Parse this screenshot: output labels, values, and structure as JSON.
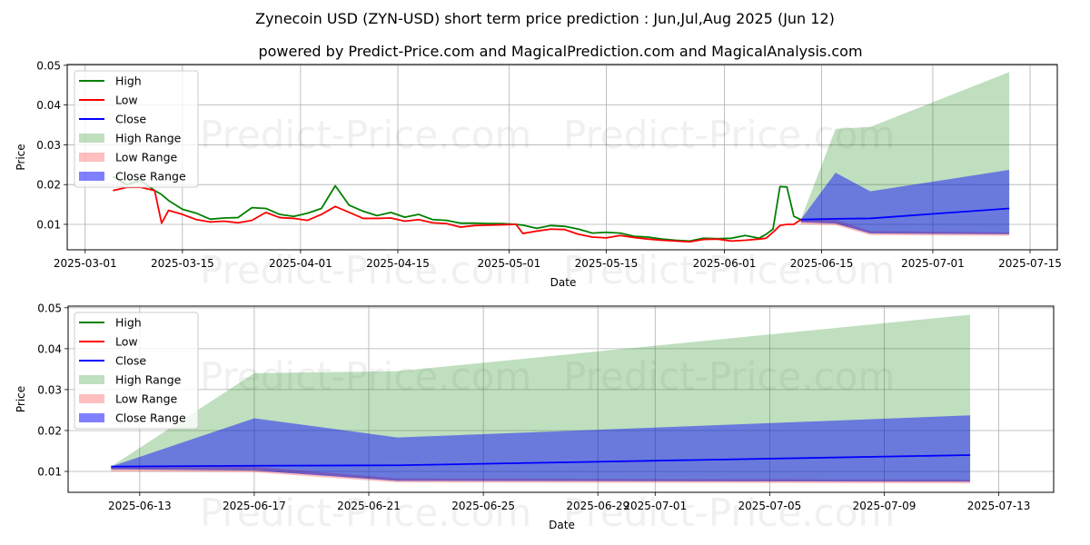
{
  "title": "Zynecoin USD (ZYN-USD) short term price prediction : Jun,Jul,Aug 2025 (Jun 12)",
  "subtitle": "powered by Predict-Price.com and MagicalPrediction.com and MagicalAnalysis.com",
  "watermark": "Predict-Price.com",
  "colors": {
    "high": "#008000",
    "low": "#ff0000",
    "close": "#0000ff",
    "high_range": "#008000",
    "low_range": "#ff0000",
    "close_range": "#0000ff"
  },
  "legend": [
    "High",
    "Low",
    "Close",
    "High Range",
    "Low Range",
    "Close Range"
  ],
  "chart_data": [
    {
      "type": "line",
      "xlabel": "Date",
      "ylabel": "Price",
      "xlim": [
        "2025-02-26T10:00",
        "2025-07-18T22:00"
      ],
      "ylim": [
        0.0036,
        0.0502
      ],
      "grid": true,
      "legend_position": "top-left",
      "xticks": [
        "2025-03-01",
        "2025-03-15",
        "2025-04-01",
        "2025-04-15",
        "2025-05-01",
        "2025-05-15",
        "2025-06-01",
        "2025-06-15",
        "2025-07-01",
        "2025-07-15"
      ],
      "yticks": [
        0.01,
        0.02,
        0.03,
        0.04,
        0.05
      ],
      "ytick_labels": [
        "0.01",
        "0.02",
        "0.03",
        "0.04",
        "0.05"
      ],
      "history": {
        "dates": [
          "2025-03-05",
          "2025-03-07",
          "2025-03-09",
          "2025-03-11",
          "2025-03-12",
          "2025-03-13",
          "2025-03-15",
          "2025-03-17",
          "2025-03-19",
          "2025-03-21",
          "2025-03-23",
          "2025-03-25",
          "2025-03-27",
          "2025-03-29",
          "2025-03-31",
          "2025-04-02",
          "2025-04-04",
          "2025-04-06",
          "2025-04-08",
          "2025-04-10",
          "2025-04-12",
          "2025-04-14",
          "2025-04-16",
          "2025-04-18",
          "2025-04-20",
          "2025-04-22",
          "2025-04-24",
          "2025-04-26",
          "2025-04-28",
          "2025-04-30",
          "2025-05-02",
          "2025-05-03",
          "2025-05-05",
          "2025-05-07",
          "2025-05-09",
          "2025-05-11",
          "2025-05-13",
          "2025-05-15",
          "2025-05-17",
          "2025-05-19",
          "2025-05-21",
          "2025-05-23",
          "2025-05-25",
          "2025-05-27",
          "2025-05-29",
          "2025-05-31",
          "2025-06-02",
          "2025-06-04",
          "2025-06-06",
          "2025-06-07",
          "2025-06-08",
          "2025-06-09",
          "2025-06-10",
          "2025-06-11",
          "2025-06-12"
        ],
        "high": [
          0.022,
          0.02,
          0.021,
          0.0185,
          0.0175,
          0.016,
          0.0138,
          0.0128,
          0.0113,
          0.0116,
          0.0117,
          0.0142,
          0.014,
          0.0125,
          0.012,
          0.0128,
          0.014,
          0.0197,
          0.0148,
          0.0133,
          0.0122,
          0.013,
          0.0118,
          0.0125,
          0.0112,
          0.011,
          0.0103,
          0.0103,
          0.0102,
          0.0102,
          0.01,
          0.0098,
          0.009,
          0.0097,
          0.0095,
          0.0088,
          0.0078,
          0.008,
          0.0078,
          0.007,
          0.0068,
          0.0063,
          0.006,
          0.0058,
          0.0065,
          0.0064,
          0.0065,
          0.0072,
          0.0065,
          0.0075,
          0.0088,
          0.0195,
          0.0194,
          0.012,
          0.0112
        ],
        "low": [
          0.0185,
          0.0193,
          0.0193,
          0.0185,
          0.0103,
          0.0135,
          0.0125,
          0.0112,
          0.0106,
          0.0108,
          0.0104,
          0.011,
          0.013,
          0.0117,
          0.0115,
          0.011,
          0.0125,
          0.0145,
          0.013,
          0.0115,
          0.0115,
          0.0116,
          0.0108,
          0.0112,
          0.0104,
          0.0102,
          0.0093,
          0.0097,
          0.0098,
          0.0099,
          0.01,
          0.0077,
          0.0083,
          0.0088,
          0.0087,
          0.0075,
          0.0068,
          0.0066,
          0.0072,
          0.0067,
          0.0063,
          0.006,
          0.0058,
          0.0056,
          0.0062,
          0.0063,
          0.0058,
          0.006,
          0.0063,
          0.0065,
          0.008,
          0.0097,
          0.01,
          0.01,
          0.0112
        ]
      }
    },
    {
      "type": "line",
      "xlabel": "Date",
      "ylabel": "Price",
      "xlim": [
        "2025-06-10T12:00",
        "2025-07-14T22:00"
      ],
      "ylim": [
        0.0049,
        0.0504
      ],
      "grid": true,
      "legend_position": "top-left",
      "xticks": [
        "2025-06-13",
        "2025-06-17",
        "2025-06-21",
        "2025-06-25",
        "2025-06-29",
        "2025-07-01",
        "2025-07-05",
        "2025-07-09",
        "2025-07-13"
      ],
      "yticks": [
        0.01,
        0.02,
        0.03,
        0.04,
        0.05
      ],
      "ytick_labels": [
        "0.01",
        "0.02",
        "0.03",
        "0.04",
        "0.05"
      ]
    }
  ],
  "forecast": {
    "dates": [
      "2025-06-12",
      "2025-06-17",
      "2025-06-22",
      "2025-07-12"
    ],
    "close": [
      0.0112,
      0.0114,
      0.0115,
      0.014
    ],
    "high_range_upper": [
      0.0112,
      0.034,
      0.0345,
      0.0483
    ],
    "high_range_lower": [
      0.0105,
      0.0102,
      0.0077,
      0.0075
    ],
    "close_range_upper": [
      0.0112,
      0.023,
      0.0183,
      0.0237
    ],
    "close_range_lower": [
      0.0105,
      0.0102,
      0.0077,
      0.0075
    ],
    "low_range_upper": [
      0.0112,
      0.0112,
      0.0083,
      0.008
    ],
    "low_range_lower": [
      0.01,
      0.0098,
      0.0073,
      0.0071
    ]
  }
}
